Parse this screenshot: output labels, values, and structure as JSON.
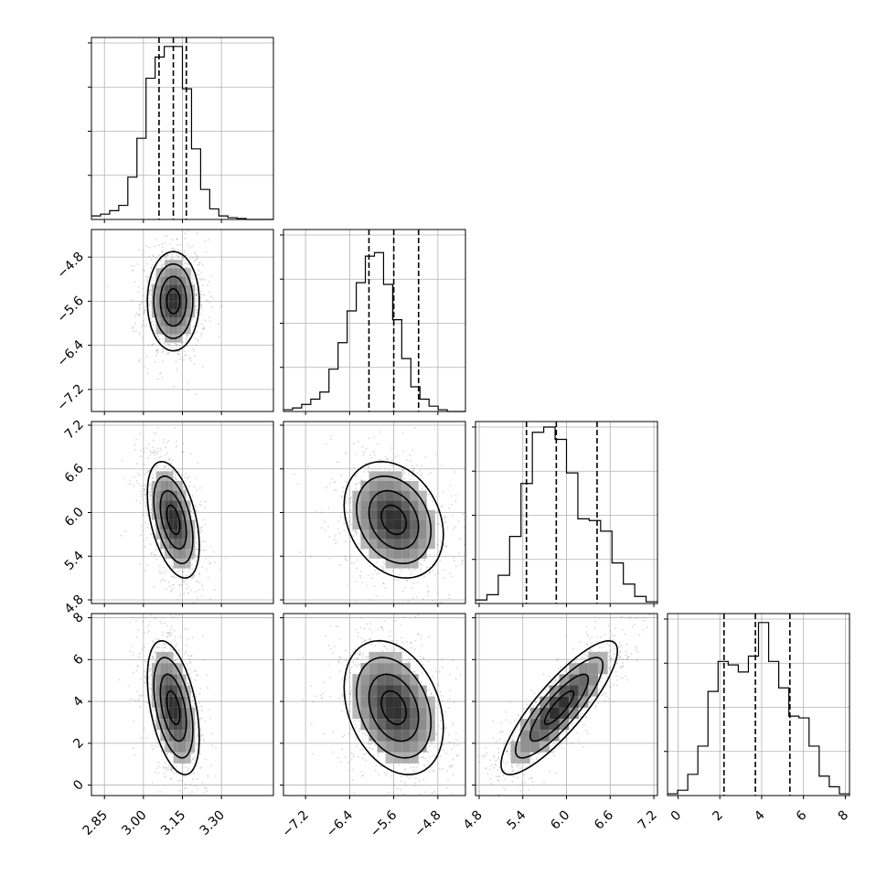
{
  "chart_data": {
    "type": "corner",
    "parameters": [
      {
        "ticks": [
          "2.85",
          "3.00",
          "3.15",
          "3.30"
        ],
        "range": [
          2.8,
          3.5
        ],
        "center": 3.115,
        "sd": 0.05,
        "quantiles": [
          3.06,
          3.115,
          3.165
        ]
      },
      {
        "ticks": [
          "−7.2",
          "−6.4",
          "−5.6",
          "−4.8"
        ],
        "range": [
          -7.6,
          -4.3
        ],
        "center": -5.6,
        "sd": 0.45,
        "quantiles": [
          -6.05,
          -5.6,
          -5.15
        ]
      },
      {
        "ticks": [
          "4.8",
          "5.4",
          "6.0",
          "6.6",
          "7.2"
        ],
        "range": [
          4.75,
          7.25
        ],
        "center": 5.9,
        "sd": 0.4,
        "quantiles": [
          5.45,
          5.86,
          6.42
        ]
      },
      {
        "ticks": [
          "0",
          "2",
          "4",
          "6",
          "8"
        ],
        "range": [
          -0.5,
          8.2
        ],
        "center": 3.7,
        "sd": 1.6,
        "quantiles": [
          2.2,
          3.7,
          5.35
        ]
      }
    ],
    "histograms": [
      {
        "counts": [
          0.02,
          0.03,
          0.05,
          0.08,
          0.24,
          0.46,
          0.8,
          0.92,
          0.98,
          0.98,
          0.74,
          0.4,
          0.17,
          0.06,
          0.02,
          0.01,
          0.005,
          0,
          0,
          0
        ]
      },
      {
        "counts": [
          0.01,
          0.02,
          0.04,
          0.07,
          0.11,
          0.24,
          0.39,
          0.57,
          0.73,
          0.88,
          0.9,
          0.72,
          0.52,
          0.3,
          0.14,
          0.07,
          0.03,
          0.01,
          0,
          0
        ]
      },
      {
        "counts": [
          0.02,
          0.05,
          0.16,
          0.38,
          0.68,
          0.97,
          1.0,
          0.93,
          0.74,
          0.48,
          0.47,
          0.41,
          0.23,
          0.11,
          0.04,
          0.01
        ]
      },
      {
        "counts": [
          0.01,
          0.03,
          0.12,
          0.28,
          0.59,
          0.76,
          0.74,
          0.7,
          0.79,
          0.98,
          0.76,
          0.61,
          0.45,
          0.44,
          0.28,
          0.11,
          0.05,
          0.01
        ]
      }
    ],
    "grid": true
  }
}
